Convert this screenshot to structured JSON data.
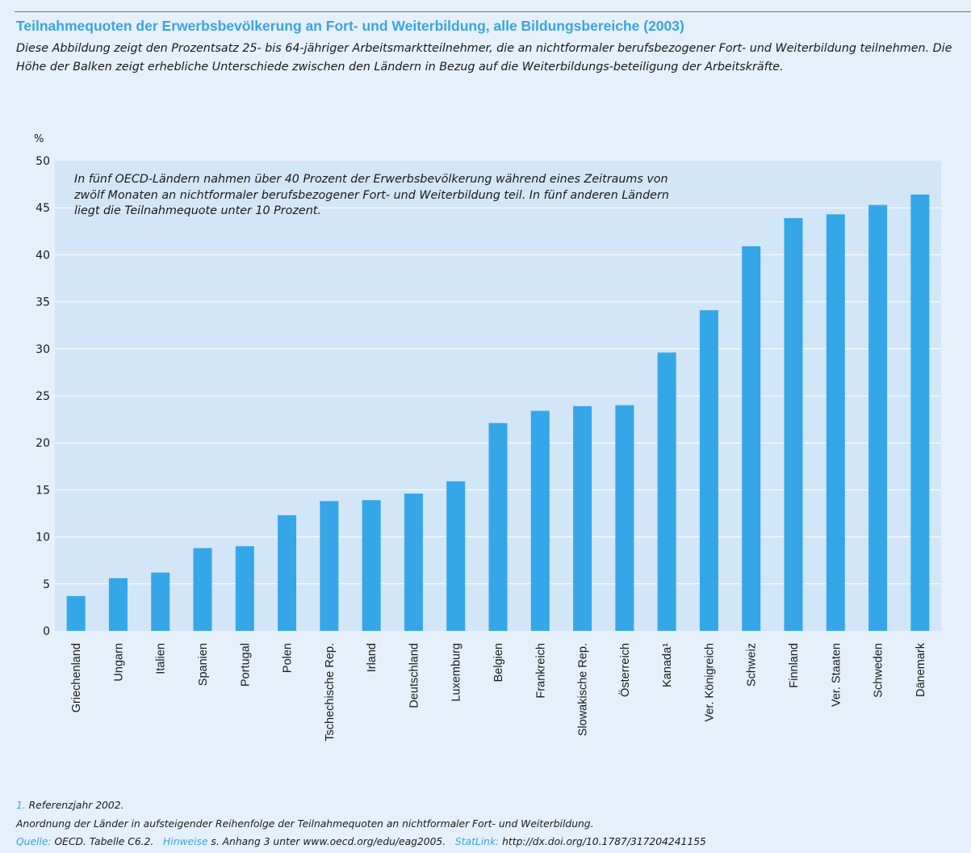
{
  "chart_data": {
    "type": "bar",
    "title": "Teilnahmequoten der Erwerbsbevölkerung an Fort- und Weiterbildung, alle Bildungsbereiche (2003)",
    "subtitle": "Diese Abbildung zeigt den Prozentsatz 25- bis 64-jähriger Arbeitsmarktteilnehmer, die an nichtformaler berufsbezogener Fort- und Weiterbildung teilnehmen. Die Höhe der Balken zeigt erhebliche Unterschiede zwischen den Ländern in Bezug auf die Weiterbildungs-beteiligung der Arbeitskräfte.",
    "ylabel": "%",
    "xlabel": "",
    "ylim": [
      0,
      50
    ],
    "yticks": [
      0,
      5,
      10,
      15,
      20,
      25,
      30,
      35,
      40,
      45,
      50
    ],
    "grid": true,
    "annotation": "In fünf OECD-Ländern nahmen über 40 Prozent der Erwerbsbevölkerung während eines Zeitraums von zwölf Monaten an nichtformaler berufsbezogener Fort- und Weiterbildung teil. In fünf anderen Ländern liegt die Teilnahmequote unter 10 Prozent.",
    "categories": [
      "Griechenland",
      "Ungarn",
      "Italien",
      "Spanien",
      "Portugal",
      "Polen",
      "Tschechische Rep.",
      "Irland",
      "Deutschland",
      "Luxemburg",
      "Belgien",
      "Frankreich",
      "Slowakische Rep.",
      "Österreich",
      "Kanada¹",
      "Ver. Königreich",
      "Schweiz",
      "Finnland",
      "Ver. Staaten",
      "Schweden",
      "Dänemark"
    ],
    "values": [
      3.7,
      5.6,
      6.2,
      8.8,
      9.0,
      12.3,
      13.8,
      13.9,
      14.6,
      15.9,
      22.1,
      23.4,
      23.9,
      24.0,
      29.6,
      34.1,
      40.9,
      43.9,
      44.3,
      45.3,
      46.4
    ],
    "bar_color": "#35a6e8"
  },
  "notes": {
    "footnote_marker": "1.",
    "footnote_text": " Referenzjahr 2002.",
    "order_note": "Anordnung der Länder in aufsteigender Reihenfolge der Teilnahmequoten an nichtformaler Fort- und Weiterbildung.",
    "source_label": "Quelle:",
    "source_text": " OECD. Tabelle C6.2.",
    "hints_label": "Hinweise",
    "hints_text": " s. Anhang 3 unter www.oecd.org/edu/eag2005.",
    "statlink_label": "StatLink:",
    "statlink_text": " http://dx.doi.org/10.1787/317204241155"
  }
}
